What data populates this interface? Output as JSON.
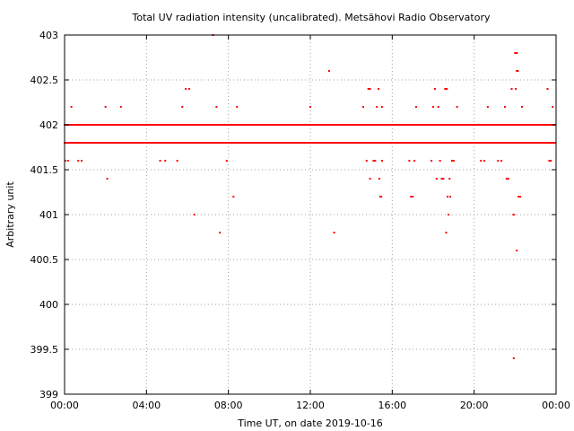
{
  "chart_data": {
    "type": "scatter",
    "title": "Total UV radiation intensity (uncalibrated). Metsähovi Radio Observatory",
    "xlabel": "Time UT, on date 2019-10-16",
    "ylabel": "Arbitrary unit",
    "xlim": [
      "00:00",
      "24:00"
    ],
    "ylim": [
      399,
      403
    ],
    "x_ticks": [
      "00:00",
      "04:00",
      "08:00",
      "12:00",
      "16:00",
      "20:00",
      "00:00"
    ],
    "y_ticks": [
      "399",
      "399.5",
      "400",
      "400.5",
      "401",
      "401.5",
      "402",
      "402.5",
      "403"
    ],
    "grid": true,
    "marker_color": "#ff0000",
    "baseline_levels": [
      {
        "value": 402.0,
        "x_start": "00:00",
        "x_end": "24:00",
        "note": "dense continuous band"
      },
      {
        "value": 401.8,
        "x_start": "00:00",
        "x_end": "24:00",
        "note": "dense band with gaps"
      }
    ],
    "points": [
      {
        "x": "00:02",
        "y": 401.6
      },
      {
        "x": "00:10",
        "y": 401.6
      },
      {
        "x": "00:20",
        "y": 402.2
      },
      {
        "x": "00:40",
        "y": 401.6
      },
      {
        "x": "00:50",
        "y": 401.6
      },
      {
        "x": "02:00",
        "y": 402.2
      },
      {
        "x": "02:05",
        "y": 401.4
      },
      {
        "x": "02:45",
        "y": 402.2
      },
      {
        "x": "04:40",
        "y": 401.6
      },
      {
        "x": "04:55",
        "y": 401.6
      },
      {
        "x": "05:30",
        "y": 401.6
      },
      {
        "x": "05:45",
        "y": 402.2
      },
      {
        "x": "05:55",
        "y": 402.4
      },
      {
        "x": "06:05",
        "y": 402.4
      },
      {
        "x": "06:20",
        "y": 401.0
      },
      {
        "x": "07:15",
        "y": 403.0
      },
      {
        "x": "07:25",
        "y": 402.2
      },
      {
        "x": "07:35",
        "y": 400.8
      },
      {
        "x": "07:55",
        "y": 401.6
      },
      {
        "x": "08:15",
        "y": 401.2
      },
      {
        "x": "08:25",
        "y": 402.2
      },
      {
        "x": "12:00",
        "y": 402.2
      },
      {
        "x": "12:55",
        "y": 402.6
      },
      {
        "x": "13:10",
        "y": 400.8
      },
      {
        "x": "14:35",
        "y": 402.2
      },
      {
        "x": "14:50",
        "y": 402.4
      },
      {
        "x": "14:55",
        "y": 402.4
      },
      {
        "x": "14:45",
        "y": 401.6
      },
      {
        "x": "14:55",
        "y": 401.4
      },
      {
        "x": "15:05",
        "y": 401.6
      },
      {
        "x": "15:10",
        "y": 401.6
      },
      {
        "x": "15:15",
        "y": 402.2
      },
      {
        "x": "15:20",
        "y": 402.4
      },
      {
        "x": "15:25",
        "y": 401.2
      },
      {
        "x": "15:28",
        "y": 401.2
      },
      {
        "x": "15:22",
        "y": 401.4
      },
      {
        "x": "15:30",
        "y": 401.6
      },
      {
        "x": "15:30",
        "y": 402.2
      },
      {
        "x": "16:50",
        "y": 401.6
      },
      {
        "x": "16:55",
        "y": 401.2
      },
      {
        "x": "17:00",
        "y": 401.2
      },
      {
        "x": "17:05",
        "y": 401.6
      },
      {
        "x": "17:10",
        "y": 402.2
      },
      {
        "x": "17:55",
        "y": 401.6
      },
      {
        "x": "18:00",
        "y": 402.2
      },
      {
        "x": "18:05",
        "y": 402.4
      },
      {
        "x": "18:10",
        "y": 401.4
      },
      {
        "x": "18:15",
        "y": 402.2
      },
      {
        "x": "18:20",
        "y": 401.6
      },
      {
        "x": "18:25",
        "y": 401.4
      },
      {
        "x": "18:30",
        "y": 401.4
      },
      {
        "x": "18:35",
        "y": 402.4
      },
      {
        "x": "18:40",
        "y": 402.4
      },
      {
        "x": "18:38",
        "y": 400.8
      },
      {
        "x": "18:42",
        "y": 401.2
      },
      {
        "x": "18:45",
        "y": 401.0
      },
      {
        "x": "18:48",
        "y": 401.4
      },
      {
        "x": "18:50",
        "y": 401.2
      },
      {
        "x": "18:55",
        "y": 401.6
      },
      {
        "x": "19:00",
        "y": 401.6
      },
      {
        "x": "19:10",
        "y": 402.2
      },
      {
        "x": "20:20",
        "y": 401.6
      },
      {
        "x": "20:30",
        "y": 401.6
      },
      {
        "x": "20:40",
        "y": 402.2
      },
      {
        "x": "21:10",
        "y": 401.6
      },
      {
        "x": "21:20",
        "y": 401.6
      },
      {
        "x": "21:30",
        "y": 402.2
      },
      {
        "x": "21:35",
        "y": 401.4
      },
      {
        "x": "21:40",
        "y": 401.4
      },
      {
        "x": "21:50",
        "y": 402.4
      },
      {
        "x": "21:55",
        "y": 401.0
      },
      {
        "x": "21:57",
        "y": 401.0
      },
      {
        "x": "21:56",
        "y": 399.4
      },
      {
        "x": "22:00",
        "y": 402.8
      },
      {
        "x": "22:02",
        "y": 402.4
      },
      {
        "x": "22:05",
        "y": 402.8
      },
      {
        "x": "22:05",
        "y": 402.6
      },
      {
        "x": "22:08",
        "y": 402.6
      },
      {
        "x": "22:05",
        "y": 400.6
      },
      {
        "x": "22:10",
        "y": 401.2
      },
      {
        "x": "22:15",
        "y": 401.2
      },
      {
        "x": "22:20",
        "y": 402.2
      },
      {
        "x": "23:35",
        "y": 402.4
      },
      {
        "x": "23:40",
        "y": 401.6
      },
      {
        "x": "23:45",
        "y": 401.6
      },
      {
        "x": "23:50",
        "y": 402.2
      }
    ]
  }
}
